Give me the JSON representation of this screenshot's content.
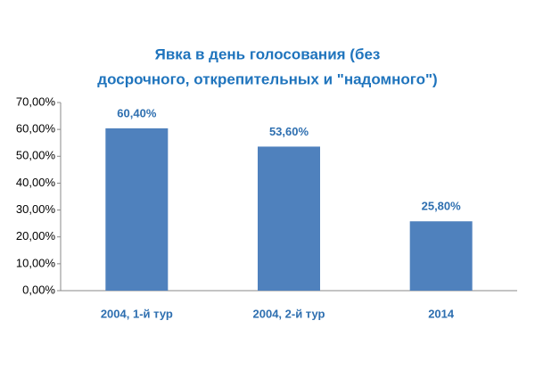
{
  "chart_data": {
    "type": "bar",
    "title": [
      "Явка в день голосования (без",
      "досрочного, открепительных и \"надомного\")"
    ],
    "categories": [
      "2004, 1-й тур",
      "2004, 2-й тур",
      "2014"
    ],
    "values": [
      60.4,
      53.6,
      25.8
    ],
    "value_labels": [
      "60,40%",
      "53,60%",
      "25,80%"
    ],
    "color": "#4f81bd",
    "ylim": [
      0,
      70
    ],
    "yticks": [
      {
        "value": 0,
        "label": "0,00%"
      },
      {
        "value": 10,
        "label": "10,00%"
      },
      {
        "value": 20,
        "label": "20,00%"
      },
      {
        "value": 30,
        "label": "30,00%"
      },
      {
        "value": 40,
        "label": "40,00%"
      },
      {
        "value": 50,
        "label": "50,00%"
      },
      {
        "value": 60,
        "label": "60,00%"
      },
      {
        "value": 70,
        "label": "70,00%"
      }
    ],
    "grid": false
  }
}
